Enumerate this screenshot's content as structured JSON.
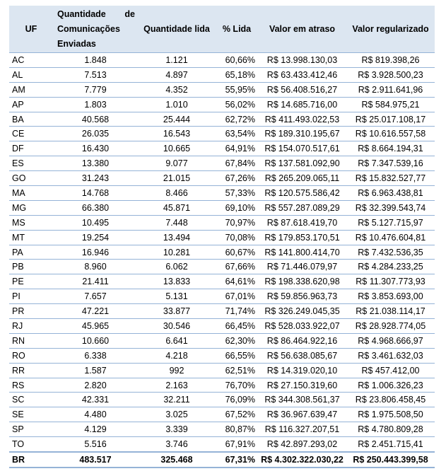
{
  "headers": [
    "UF",
    "Quantidade de Comunicações Enviadas",
    "Quantidade lida",
    "% Lida",
    "Valor em atraso",
    "Valor regularizado"
  ],
  "rows": [
    [
      "AC",
      "1.848",
      "1.121",
      "60,66%",
      "R$ 13.998.130,03",
      "R$ 819.398,26"
    ],
    [
      "AL",
      "7.513",
      "4.897",
      "65,18%",
      "R$ 63.433.412,46",
      "R$ 3.928.500,23"
    ],
    [
      "AM",
      "7.779",
      "4.352",
      "55,95%",
      "R$ 56.408.516,27",
      "R$ 2.911.641,96"
    ],
    [
      "AP",
      "1.803",
      "1.010",
      "56,02%",
      "R$ 14.685.716,00",
      "R$ 584.975,21"
    ],
    [
      "BA",
      "40.568",
      "25.444",
      "62,72%",
      "R$ 411.493.022,53",
      "R$ 25.017.108,17"
    ],
    [
      "CE",
      "26.035",
      "16.543",
      "63,54%",
      "R$ 189.310.195,67",
      "R$ 10.616.557,58"
    ],
    [
      "DF",
      "16.430",
      "10.665",
      "64,91%",
      "R$ 154.070.517,61",
      "R$ 8.664.194,31"
    ],
    [
      "ES",
      "13.380",
      "9.077",
      "67,84%",
      "R$ 137.581.092,90",
      "R$ 7.347.539,16"
    ],
    [
      "GO",
      "31.243",
      "21.015",
      "67,26%",
      "R$ 265.209.065,11",
      "R$ 15.832.527,77"
    ],
    [
      "MA",
      "14.768",
      "8.466",
      "57,33%",
      "R$ 120.575.586,42",
      "R$ 6.963.438,81"
    ],
    [
      "MG",
      "66.380",
      "45.871",
      "69,10%",
      "R$ 557.287.089,29",
      "R$ 32.399.543,74"
    ],
    [
      "MS",
      "10.495",
      "7.448",
      "70,97%",
      "R$ 87.618.419,70",
      "R$ 5.127.715,97"
    ],
    [
      "MT",
      "19.254",
      "13.494",
      "70,08%",
      "R$ 179.853.170,51",
      "R$ 10.476.604,81"
    ],
    [
      "PA",
      "16.946",
      "10.281",
      "60,67%",
      "R$ 141.800.414,70",
      "R$ 7.432.536,35"
    ],
    [
      "PB",
      "8.960",
      "6.062",
      "67,66%",
      "R$ 71.446.079,97",
      "R$ 4.284.233,25"
    ],
    [
      "PE",
      "21.411",
      "13.833",
      "64,61%",
      "R$ 198.338.620,98",
      "R$ 11.307.773,93"
    ],
    [
      "PI",
      "7.657",
      "5.131",
      "67,01%",
      "R$ 59.856.963,73",
      "R$ 3.853.693,00"
    ],
    [
      "PR",
      "47.221",
      "33.877",
      "71,74%",
      "R$ 326.249.045,35",
      "R$ 21.038.114,17"
    ],
    [
      "RJ",
      "45.965",
      "30.546",
      "66,45%",
      "R$ 528.033.922,07",
      "R$ 28.928.774,05"
    ],
    [
      "RN",
      "10.660",
      "6.641",
      "62,30%",
      "R$ 86.464.922,16",
      "R$ 4.968.666,97"
    ],
    [
      "RO",
      "6.338",
      "4.218",
      "66,55%",
      "R$ 56.638.085,67",
      "R$ 3.461.632,03"
    ],
    [
      "RR",
      "1.587",
      "992",
      "62,51%",
      "R$ 14.319.020,10",
      "R$ 457.412,00"
    ],
    [
      "RS",
      "2.820",
      "2.163",
      "76,70%",
      "R$ 27.150.319,60",
      "R$ 1.006.326,23"
    ],
    [
      "SC",
      "42.331",
      "32.211",
      "76,09%",
      "R$ 344.308.561,37",
      "R$ 23.806.458,45"
    ],
    [
      "SE",
      "4.480",
      "3.025",
      "67,52%",
      "R$ 36.967.639,47",
      "R$ 1.975.508,50"
    ],
    [
      "SP",
      "4.129",
      "3.339",
      "80,87%",
      "R$ 116.327.207,51",
      "R$ 4.780.809,28"
    ],
    [
      "TO",
      "5.516",
      "3.746",
      "67,91%",
      "R$ 42.897.293,02",
      "R$ 2.451.715,41"
    ]
  ],
  "total": [
    "BR",
    "483.517",
    "325.468",
    "67,31%",
    "R$ 4.302.322.030,22",
    "R$ 250.443.399,58"
  ],
  "colors": {
    "header_bg": "#dce6f1",
    "border": "#95b3d7"
  }
}
